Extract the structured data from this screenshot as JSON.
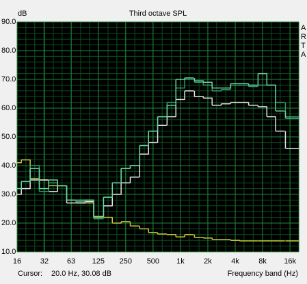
{
  "chart_data": {
    "type": "step",
    "title": "Third octave SPL",
    "y_unit_label": "dB",
    "x_axis_label": "Frequency band (Hz)",
    "cursor_label": "Cursor:",
    "cursor_value": "20.0 Hz, 30.08 dB",
    "legend_fragments": [
      "A",
      "R",
      "T",
      "A"
    ],
    "log_x": true,
    "grid": true,
    "minor_grid": true,
    "background": "#000000",
    "grid_color": "#0b4f1c",
    "x": [
      16,
      20,
      25,
      31.5,
      40,
      50,
      63,
      80,
      100,
      125,
      160,
      200,
      250,
      315,
      400,
      500,
      630,
      800,
      1000,
      1250,
      1600,
      2000,
      2500,
      3150,
      4000,
      5000,
      6300,
      8000,
      10000,
      12500,
      16000,
      20000
    ],
    "xlim": [
      16,
      20000
    ],
    "xticks": [
      16,
      32,
      63,
      125,
      250,
      500,
      {
        "value": 1000,
        "label": "1k"
      },
      {
        "value": 2000,
        "label": "2k"
      },
      {
        "value": 4000,
        "label": "4k"
      },
      {
        "value": 8000,
        "label": "8k"
      },
      {
        "value": 16000,
        "label": "16k"
      }
    ],
    "ylim": [
      10,
      90
    ],
    "yticks": [
      {
        "value": 10,
        "label": "10.0"
      },
      {
        "value": 20,
        "label": "20.0"
      },
      {
        "value": 30,
        "label": "30.0"
      },
      {
        "value": 40,
        "label": "40.0"
      },
      {
        "value": 50,
        "label": "50.0"
      },
      {
        "value": 60,
        "label": "60.0"
      },
      {
        "value": 70,
        "label": "70.0"
      },
      {
        "value": 80,
        "label": "80.0"
      },
      {
        "value": 90,
        "label": "90.0"
      }
    ],
    "series": [
      {
        "color": "#c9c83a",
        "values": [
          41,
          42,
          35.5,
          35,
          33,
          33,
          28,
          27,
          27,
          22.3,
          22,
          20,
          20.5,
          19,
          18,
          16.7,
          16.2,
          16,
          15.2,
          16,
          15,
          14.8,
          14.3,
          14.3,
          14,
          13.8,
          13.8,
          13.8,
          13.8,
          13.8,
          13.8,
          13.8
        ]
      },
      {
        "color": "#e6e6e6",
        "values": [
          30,
          32,
          35,
          35,
          31,
          33,
          27,
          27,
          27.5,
          22,
          26,
          30,
          34,
          36,
          44,
          48,
          54,
          57,
          63,
          66,
          64,
          63.5,
          61,
          61.5,
          62,
          62,
          61,
          60.5,
          57,
          52,
          46,
          46
        ]
      },
      {
        "color": "#2e9e6e",
        "values": [
          32,
          34.5,
          40,
          31,
          34,
          33,
          28,
          27.5,
          28,
          21.5,
          29,
          34,
          39,
          40,
          47,
          52,
          57,
          62,
          67,
          70,
          69,
          68,
          66,
          66.5,
          68,
          68,
          67.5,
          68,
          68,
          62,
          57,
          57
        ]
      },
      {
        "color": "#6ad6a0",
        "values": [
          32,
          34.5,
          39,
          32,
          35,
          33,
          28,
          28,
          28,
          22,
          29,
          34,
          39,
          40,
          47,
          52,
          57,
          61,
          70,
          70.5,
          69.5,
          69,
          67,
          67,
          68.5,
          68.5,
          68,
          72,
          68,
          59,
          56.5,
          56.5
        ]
      }
    ]
  }
}
